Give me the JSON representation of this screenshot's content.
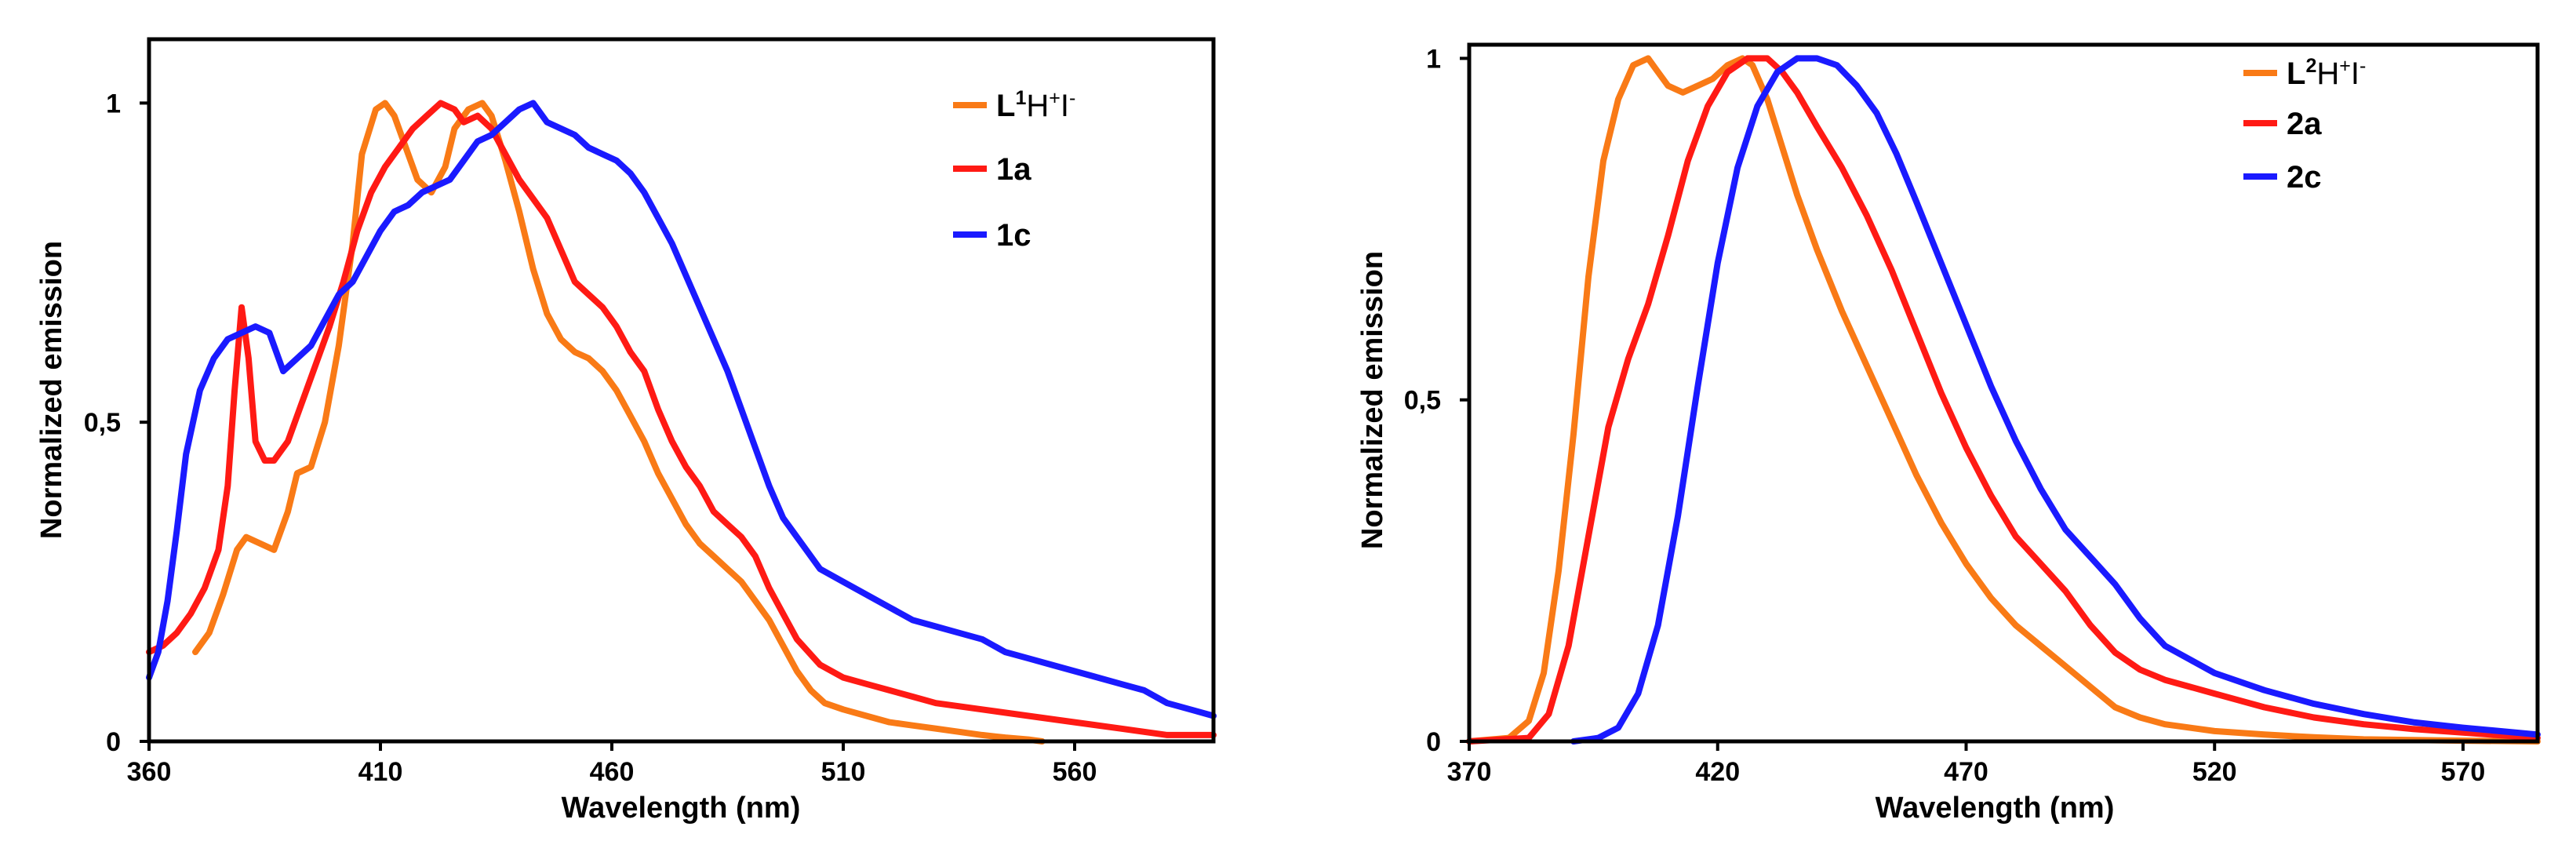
{
  "chart_data": [
    {
      "type": "line",
      "xlabel": "Wavelength (nm)",
      "ylabel": "Normalized emission",
      "xlim": [
        360,
        590
      ],
      "ylim": [
        0,
        1.1
      ],
      "xticks": [
        "360",
        "410",
        "460",
        "510",
        "560"
      ],
      "xtick_values": [
        360,
        410,
        460,
        510,
        560
      ],
      "yticks": [
        "0",
        "0,5",
        "1"
      ],
      "ytick_values": [
        0,
        0.5,
        1
      ],
      "grid": false,
      "legend_position": "top-right",
      "series": [
        {
          "name": "L1H+I-",
          "label_base": "L",
          "label_sup1": "1",
          "label_mid": "H",
          "label_sup2": "+",
          "label_end": "I",
          "label_sup3": "-",
          "color": "#F97A16",
          "x": [
            370,
            373,
            376,
            379,
            381,
            384,
            387,
            390,
            392,
            395,
            398,
            401,
            404,
            406,
            409,
            411,
            413,
            416,
            418,
            421,
            424,
            426,
            429,
            432,
            434,
            437,
            440,
            443,
            446,
            449,
            452,
            455,
            458,
            461,
            464,
            467,
            470,
            473,
            476,
            479,
            482,
            485,
            488,
            491,
            494,
            497,
            500,
            503,
            506,
            510,
            515,
            520,
            525,
            530,
            535,
            540,
            545,
            550,
            553
          ],
          "y": [
            0.14,
            0.17,
            0.23,
            0.3,
            0.32,
            0.31,
            0.3,
            0.36,
            0.42,
            0.43,
            0.5,
            0.62,
            0.78,
            0.92,
            0.99,
            1.0,
            0.98,
            0.92,
            0.88,
            0.86,
            0.9,
            0.96,
            0.99,
            1.0,
            0.98,
            0.91,
            0.83,
            0.74,
            0.67,
            0.63,
            0.61,
            0.6,
            0.58,
            0.55,
            0.51,
            0.47,
            0.42,
            0.38,
            0.34,
            0.31,
            0.29,
            0.27,
            0.25,
            0.22,
            0.19,
            0.15,
            0.11,
            0.08,
            0.06,
            0.05,
            0.04,
            0.03,
            0.025,
            0.02,
            0.015,
            0.01,
            0.006,
            0.003,
            0.0
          ]
        },
        {
          "name": "1a",
          "color": "#FF1A14",
          "x": [
            360,
            363,
            366,
            369,
            372,
            375,
            377,
            378.5,
            380,
            381.5,
            383,
            385,
            387,
            390,
            393,
            396,
            399,
            402,
            405,
            408,
            411,
            414,
            417,
            420,
            423,
            426,
            428,
            431,
            434,
            437,
            440,
            443,
            446,
            449,
            452,
            455,
            458,
            461,
            464,
            467,
            470,
            473,
            476,
            479,
            482,
            485,
            488,
            491,
            494,
            497,
            500,
            505,
            510,
            515,
            520,
            525,
            530,
            540,
            550,
            560,
            570,
            580,
            590
          ],
          "y": [
            0.14,
            0.15,
            0.17,
            0.2,
            0.24,
            0.3,
            0.4,
            0.55,
            0.68,
            0.6,
            0.47,
            0.44,
            0.44,
            0.47,
            0.53,
            0.59,
            0.65,
            0.72,
            0.8,
            0.86,
            0.9,
            0.93,
            0.96,
            0.98,
            1.0,
            0.99,
            0.97,
            0.98,
            0.96,
            0.92,
            0.88,
            0.85,
            0.82,
            0.77,
            0.72,
            0.7,
            0.68,
            0.65,
            0.61,
            0.58,
            0.52,
            0.47,
            0.43,
            0.4,
            0.36,
            0.34,
            0.32,
            0.29,
            0.24,
            0.2,
            0.16,
            0.12,
            0.1,
            0.09,
            0.08,
            0.07,
            0.06,
            0.05,
            0.04,
            0.03,
            0.02,
            0.01,
            0.01
          ]
        },
        {
          "name": "1c",
          "color": "#1A1AFF",
          "x": [
            360,
            362,
            364,
            366,
            368,
            371,
            374,
            377,
            380,
            383,
            386,
            389,
            392,
            395,
            398,
            401,
            404,
            407,
            410,
            413,
            416,
            419,
            422,
            425,
            428,
            431,
            434,
            437,
            440,
            443,
            446,
            449,
            452,
            455,
            458,
            461,
            464,
            467,
            470,
            473,
            476,
            479,
            482,
            485,
            488,
            491,
            494,
            497,
            500,
            505,
            510,
            515,
            520,
            525,
            530,
            535,
            540,
            545,
            550,
            555,
            560,
            565,
            570,
            575,
            580,
            585,
            590
          ],
          "y": [
            0.1,
            0.14,
            0.22,
            0.33,
            0.45,
            0.55,
            0.6,
            0.63,
            0.64,
            0.65,
            0.64,
            0.58,
            0.6,
            0.62,
            0.66,
            0.7,
            0.72,
            0.76,
            0.8,
            0.83,
            0.84,
            0.86,
            0.87,
            0.88,
            0.91,
            0.94,
            0.95,
            0.97,
            0.99,
            1.0,
            0.97,
            0.96,
            0.95,
            0.93,
            0.92,
            0.91,
            0.89,
            0.86,
            0.82,
            0.78,
            0.73,
            0.68,
            0.63,
            0.58,
            0.52,
            0.46,
            0.4,
            0.35,
            0.32,
            0.27,
            0.25,
            0.23,
            0.21,
            0.19,
            0.18,
            0.17,
            0.16,
            0.14,
            0.13,
            0.12,
            0.11,
            0.1,
            0.09,
            0.08,
            0.06,
            0.05,
            0.04
          ]
        }
      ]
    },
    {
      "type": "line",
      "xlabel": "Wavelength (nm)",
      "ylabel": "Normalized emission",
      "xlim": [
        370,
        585
      ],
      "ylim": [
        0,
        1.02
      ],
      "xticks": [
        "370",
        "420",
        "470",
        "520",
        "570"
      ],
      "xtick_values": [
        370,
        420,
        470,
        520,
        570
      ],
      "yticks": [
        "0",
        "0,5",
        "1"
      ],
      "ytick_values": [
        0,
        0.5,
        1
      ],
      "grid": false,
      "legend_position": "top-right",
      "series": [
        {
          "name": "L2H+I-",
          "label_base": "L",
          "label_sup1": "2",
          "label_mid": "H",
          "label_sup2": "+",
          "label_end": "I",
          "label_sup3": "-",
          "color": "#F97A16",
          "x": [
            370,
            378,
            382,
            385,
            388,
            391,
            394,
            397,
            400,
            403,
            406,
            408,
            410,
            413,
            416,
            419,
            422,
            425,
            427,
            430,
            433,
            436,
            440,
            445,
            450,
            455,
            460,
            465,
            470,
            475,
            480,
            485,
            490,
            495,
            500,
            505,
            510,
            520,
            530,
            540,
            550,
            560,
            570,
            585
          ],
          "y": [
            0.0,
            0.005,
            0.03,
            0.1,
            0.25,
            0.45,
            0.68,
            0.85,
            0.94,
            0.99,
            1.0,
            0.98,
            0.96,
            0.95,
            0.96,
            0.97,
            0.99,
            1.0,
            0.99,
            0.94,
            0.87,
            0.8,
            0.72,
            0.63,
            0.55,
            0.47,
            0.39,
            0.32,
            0.26,
            0.21,
            0.17,
            0.14,
            0.11,
            0.08,
            0.05,
            0.035,
            0.025,
            0.015,
            0.01,
            0.006,
            0.003,
            0.002,
            0.001,
            0.0
          ]
        },
        {
          "name": "2a",
          "color": "#FF1A14",
          "x": [
            370,
            382,
            386,
            390,
            394,
            398,
            402,
            406,
            410,
            414,
            418,
            422,
            426,
            430,
            433,
            436,
            440,
            445,
            450,
            455,
            460,
            465,
            470,
            475,
            480,
            485,
            490,
            495,
            500,
            505,
            510,
            520,
            530,
            540,
            550,
            560,
            570,
            585
          ],
          "y": [
            0.0,
            0.005,
            0.04,
            0.14,
            0.3,
            0.46,
            0.56,
            0.64,
            0.74,
            0.85,
            0.93,
            0.98,
            1.0,
            1.0,
            0.98,
            0.95,
            0.9,
            0.84,
            0.77,
            0.69,
            0.6,
            0.51,
            0.43,
            0.36,
            0.3,
            0.26,
            0.22,
            0.17,
            0.13,
            0.105,
            0.09,
            0.07,
            0.05,
            0.035,
            0.025,
            0.018,
            0.013,
            0.005
          ]
        },
        {
          "name": "2c",
          "color": "#1A1AFF",
          "x": [
            391,
            396,
            400,
            404,
            408,
            412,
            416,
            420,
            424,
            428,
            432,
            436,
            440,
            444,
            448,
            452,
            456,
            460,
            465,
            470,
            475,
            480,
            485,
            490,
            495,
            500,
            505,
            510,
            515,
            520,
            530,
            540,
            550,
            560,
            570,
            585
          ],
          "y": [
            0.0,
            0.005,
            0.02,
            0.07,
            0.17,
            0.33,
            0.52,
            0.7,
            0.84,
            0.93,
            0.98,
            1.0,
            1.0,
            0.99,
            0.96,
            0.92,
            0.86,
            0.79,
            0.7,
            0.61,
            0.52,
            0.44,
            0.37,
            0.31,
            0.27,
            0.23,
            0.18,
            0.14,
            0.12,
            0.1,
            0.075,
            0.055,
            0.04,
            0.028,
            0.02,
            0.01
          ]
        }
      ]
    }
  ]
}
